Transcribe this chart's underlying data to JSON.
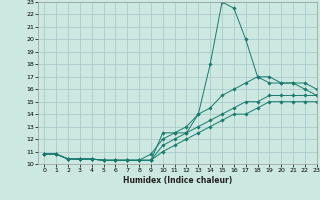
{
  "title": "",
  "xlabel": "Humidex (Indice chaleur)",
  "ylabel": "",
  "xlim": [
    -0.5,
    23
  ],
  "ylim": [
    10,
    23
  ],
  "xticks": [
    0,
    1,
    2,
    3,
    4,
    5,
    6,
    7,
    8,
    9,
    10,
    11,
    12,
    13,
    14,
    15,
    16,
    17,
    18,
    19,
    20,
    21,
    22,
    23
  ],
  "yticks": [
    10,
    11,
    12,
    13,
    14,
    15,
    16,
    17,
    18,
    19,
    20,
    21,
    22,
    23
  ],
  "background_color": "#cce8e0",
  "grid_color": "#aacccc",
  "line_color": "#1a7a6e",
  "curves": [
    {
      "x": [
        0,
        1,
        2,
        3,
        4,
        5,
        6,
        7,
        8,
        9,
        10,
        11,
        12,
        13,
        14,
        15,
        16,
        17,
        18,
        19,
        20,
        21,
        22,
        23
      ],
      "y": [
        10.8,
        10.8,
        10.4,
        10.4,
        10.4,
        10.3,
        10.3,
        10.3,
        10.3,
        10.3,
        12.5,
        12.5,
        12.5,
        14.0,
        18.0,
        23.0,
        22.5,
        20.0,
        17.0,
        16.5,
        16.5,
        16.5,
        16.0,
        15.5
      ]
    },
    {
      "x": [
        0,
        1,
        2,
        3,
        4,
        5,
        6,
        7,
        8,
        9,
        10,
        11,
        12,
        13,
        14,
        15,
        16,
        17,
        18,
        19,
        20,
        21,
        22,
        23
      ],
      "y": [
        10.8,
        10.8,
        10.4,
        10.4,
        10.4,
        10.3,
        10.3,
        10.3,
        10.3,
        10.8,
        12.0,
        12.5,
        13.0,
        14.0,
        14.5,
        15.5,
        16.0,
        16.5,
        17.0,
        17.0,
        16.5,
        16.5,
        16.5,
        16.0
      ]
    },
    {
      "x": [
        0,
        1,
        2,
        3,
        4,
        5,
        6,
        7,
        8,
        9,
        10,
        11,
        12,
        13,
        14,
        15,
        16,
        17,
        18,
        19,
        20,
        21,
        22,
        23
      ],
      "y": [
        10.8,
        10.8,
        10.4,
        10.4,
        10.4,
        10.3,
        10.3,
        10.3,
        10.3,
        10.3,
        11.5,
        12.0,
        12.5,
        13.0,
        13.5,
        14.0,
        14.5,
        15.0,
        15.0,
        15.5,
        15.5,
        15.5,
        15.5,
        15.5
      ]
    },
    {
      "x": [
        0,
        1,
        2,
        3,
        4,
        5,
        6,
        7,
        8,
        9,
        10,
        11,
        12,
        13,
        14,
        15,
        16,
        17,
        18,
        19,
        20,
        21,
        22,
        23
      ],
      "y": [
        10.8,
        10.8,
        10.4,
        10.4,
        10.4,
        10.3,
        10.3,
        10.3,
        10.3,
        10.3,
        11.0,
        11.5,
        12.0,
        12.5,
        13.0,
        13.5,
        14.0,
        14.0,
        14.5,
        15.0,
        15.0,
        15.0,
        15.0,
        15.0
      ]
    }
  ]
}
